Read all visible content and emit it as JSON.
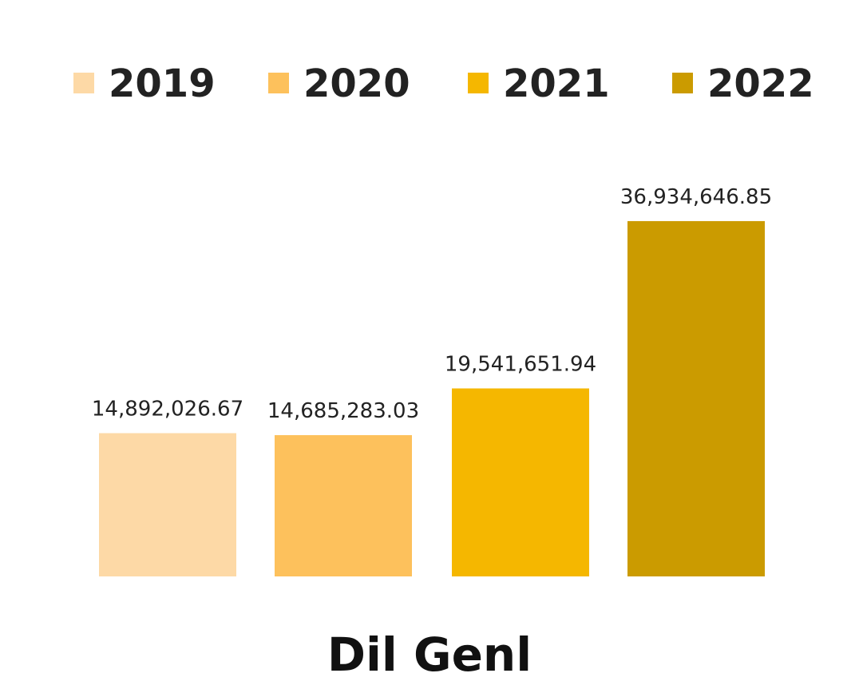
{
  "chart_data": {
    "type": "bar",
    "categories": [
      "Dil Genl"
    ],
    "series": [
      {
        "name": "2019",
        "values": [
          14892026.67
        ],
        "label": "14,892,026.67",
        "color": "#FDD9A6"
      },
      {
        "name": "2020",
        "values": [
          14685283.03
        ],
        "label": "14,685,283.03",
        "color": "#FDC15C"
      },
      {
        "name": "2021",
        "values": [
          19541651.94
        ],
        "label": "19,541,651.94",
        "color": "#F5B700"
      },
      {
        "name": "2022",
        "values": [
          36934646.85
        ],
        "label": "36,934,646.85",
        "color": "#CB9B00"
      }
    ],
    "xlabel": "Dil Genl",
    "legend_position": "top",
    "grid": false,
    "axes_visible": false,
    "ylim": [
      0,
      40000000
    ]
  }
}
